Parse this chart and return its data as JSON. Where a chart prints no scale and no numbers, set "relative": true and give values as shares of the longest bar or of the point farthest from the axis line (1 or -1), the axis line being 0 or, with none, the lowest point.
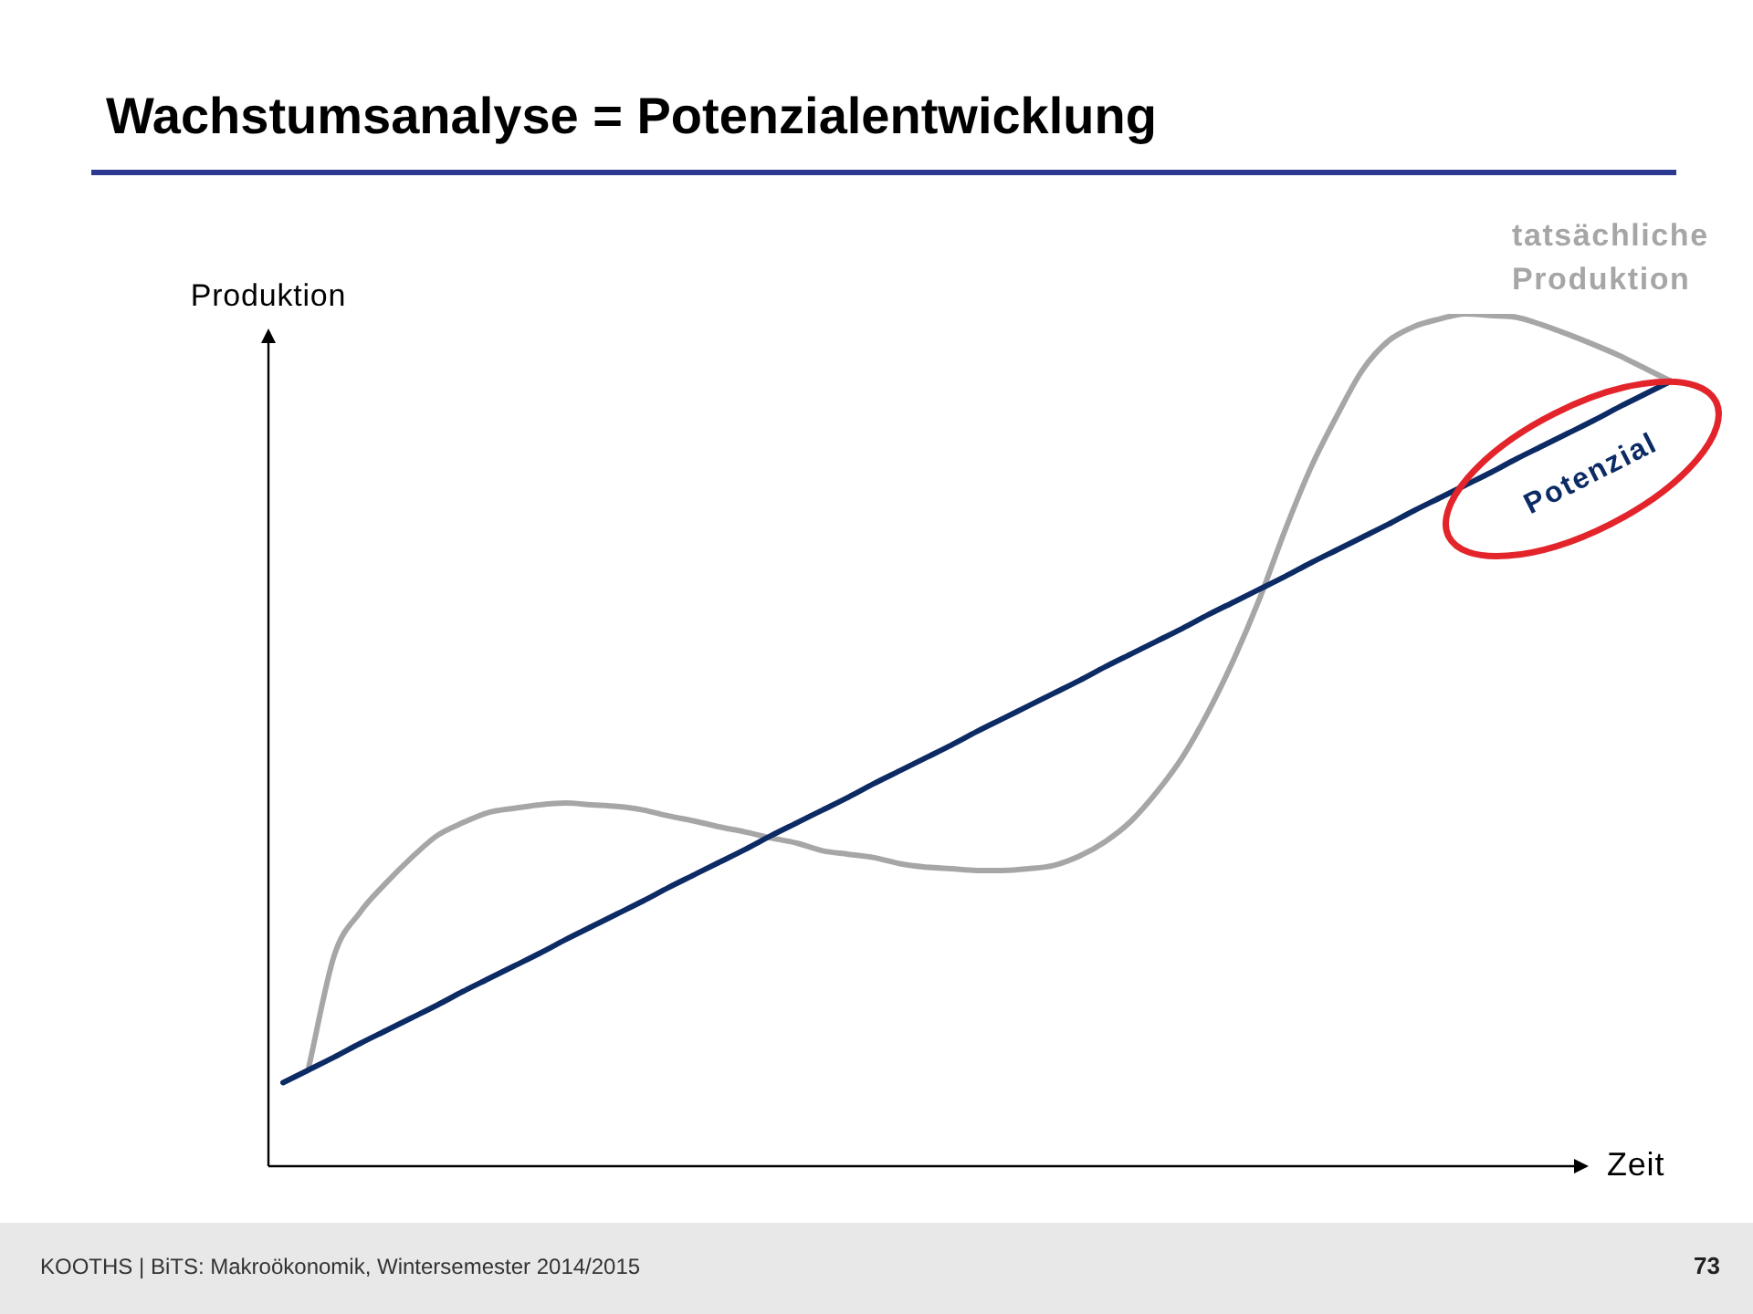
{
  "chart_data": {
    "type": "line",
    "title": "Wachstumsanalyse = Potenzialentwicklung",
    "xlabel": "Zeit",
    "ylabel": "Produktion",
    "annotations": [
      "KOOTHS | BiTS: Makroökonomik, Wintersemester 2014/2015",
      "73"
    ],
    "relative": true,
    "tick_labels": false,
    "marker": "none",
    "line_style": "solid",
    "categories": [
      null,
      null,
      null,
      null,
      null,
      null,
      null,
      null,
      null,
      null,
      null,
      null,
      null,
      null,
      null,
      null,
      null,
      null,
      null,
      null,
      null,
      null,
      null,
      null,
      null,
      null,
      null,
      null,
      null,
      null,
      null,
      null,
      null,
      null,
      null,
      null,
      null,
      null,
      null,
      null,
      null,
      null,
      null,
      null,
      null,
      null,
      null,
      null,
      null,
      null,
      null,
      null,
      null,
      null,
      null
    ],
    "series": [
      {
        "name": "Potenzial",
        "color": "#0c2b64",
        "values": [
          0.098,
          0.113,
          0.128,
          0.144,
          0.159,
          0.174,
          0.189,
          0.205,
          0.22,
          0.235,
          0.25,
          0.266,
          0.281,
          0.296,
          0.311,
          0.327,
          0.342,
          0.357,
          0.372,
          0.388,
          0.403,
          0.418,
          0.433,
          0.449,
          0.464,
          0.479,
          0.494,
          0.51,
          0.525,
          0.54,
          0.555,
          0.57,
          0.586,
          0.601,
          0.616,
          0.631,
          0.647,
          0.662,
          0.677,
          0.692,
          0.708,
          0.723,
          0.738,
          0.753,
          0.769,
          0.784,
          0.799,
          0.814,
          0.83,
          0.845,
          0.86,
          0.875,
          0.891,
          0.906,
          0.921
        ]
      },
      {
        "name": "tatsächliche Produktion",
        "color": "#a6a6a6",
        "values": [
          null,
          0.116,
          0.248,
          0.298,
          0.332,
          0.362,
          0.388,
          0.403,
          0.415,
          0.42,
          0.424,
          0.426,
          0.424,
          0.422,
          0.418,
          0.411,
          0.405,
          0.398,
          0.392,
          0.385,
          0.379,
          0.37,
          0.366,
          0.362,
          0.355,
          0.351,
          0.349,
          0.347,
          0.347,
          0.349,
          0.353,
          0.364,
          0.381,
          0.405,
          0.439,
          0.48,
          0.533,
          0.595,
          0.666,
          0.747,
          0.82,
          0.88,
          0.934,
          0.968,
          0.985,
          0.994,
          1,
          0.998,
          0.996,
          0.987,
          0.976,
          0.964,
          0.951,
          0.936,
          0.921
        ]
      }
    ]
  }
}
